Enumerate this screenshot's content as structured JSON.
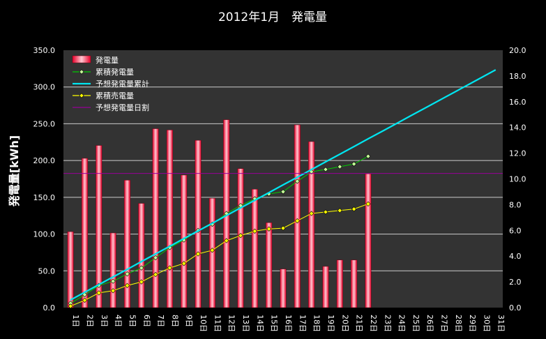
{
  "chart_data": {
    "type": "bar",
    "title": "2012年1月　発電量",
    "ylabel": "発電量[kWh]",
    "xlabel": "",
    "categories": [
      "1日",
      "2日",
      "3日",
      "4日",
      "5日",
      "6日",
      "7日",
      "8日",
      "9日",
      "10日",
      "11日",
      "12日",
      "13日",
      "14日",
      "15日",
      "16日",
      "17日",
      "18日",
      "19日",
      "20日",
      "21日",
      "22日",
      "23日",
      "24日",
      "25日",
      "26日",
      "27日",
      "28日",
      "29日",
      "30日",
      "31日"
    ],
    "ylim": [
      0,
      350
    ],
    "y_ticks": [
      "0.0",
      "50.0",
      "100.0",
      "150.0",
      "200.0",
      "250.0",
      "300.0",
      "350.0"
    ],
    "ylim_right": [
      0,
      20
    ],
    "y2_ticks": [
      "0.0",
      "2.0",
      "4.0",
      "6.0",
      "8.0",
      "10.0",
      "12.0",
      "14.0",
      "16.0",
      "18.0",
      "20.0"
    ],
    "grid": true,
    "legend_position": "top-left",
    "colors": {
      "background": "#000000",
      "plot_background": "#333333",
      "grid": "#cccccc",
      "bar": "#e8002a",
      "bar_light": "#ffc8d2",
      "cumulative": "#00cc00",
      "cumulative_marker": "#c8ff9b",
      "forecast_cumulative": "#00e5f0",
      "cumulative_sold": "#ffff00",
      "forecast_daily": "#990099"
    },
    "series": [
      {
        "name": "発電量",
        "type": "bar",
        "axis": "right",
        "values": [
          5.9,
          11.6,
          12.6,
          5.8,
          9.9,
          8.1,
          13.9,
          13.8,
          10.3,
          13.0,
          8.5,
          14.6,
          10.8,
          9.2,
          6.6,
          3.0,
          14.2,
          12.9,
          3.2,
          3.7,
          3.7,
          10.4,
          null,
          null,
          null,
          null,
          null,
          null,
          null,
          null,
          null
        ]
      },
      {
        "name": "累積発電量",
        "type": "line",
        "axis": "left",
        "values": [
          5.9,
          17.5,
          30.1,
          35.9,
          45.8,
          53.9,
          67.8,
          81.6,
          91.9,
          104.9,
          113.4,
          128.0,
          138.8,
          148.0,
          154.6,
          157.6,
          171.8,
          184.7,
          187.9,
          191.6,
          195.3,
          205.7,
          null,
          null,
          null,
          null,
          null,
          null,
          null,
          null,
          null
        ]
      },
      {
        "name": "予想発電量累計",
        "type": "line",
        "axis": "left",
        "values": [
          10.4,
          20.9,
          31.3,
          41.7,
          52.1,
          62.6,
          73.0,
          83.4,
          93.9,
          104.3,
          114.7,
          125.2,
          135.6,
          146.0,
          156.4,
          166.9,
          177.3,
          187.7,
          198.2,
          208.6,
          219.0,
          229.5,
          239.9,
          250.3,
          260.8,
          271.2,
          281.6,
          292.0,
          302.5,
          312.9,
          323.3
        ]
      },
      {
        "name": "累積売電量",
        "type": "line",
        "axis": "left",
        "values": [
          2.0,
          10.0,
          20.0,
          23.0,
          30.0,
          35.0,
          45.0,
          54.0,
          60.0,
          73.0,
          78.0,
          91.0,
          98.0,
          104.0,
          107.0,
          108.0,
          118.0,
          128.0,
          130.0,
          132.0,
          134.0,
          141.0,
          null,
          null,
          null,
          null,
          null,
          null,
          null,
          null,
          null
        ]
      },
      {
        "name": "予想発電量日割",
        "type": "line",
        "axis": "right",
        "values": [
          10.43,
          10.43,
          10.43,
          10.43,
          10.43,
          10.43,
          10.43,
          10.43,
          10.43,
          10.43,
          10.43,
          10.43,
          10.43,
          10.43,
          10.43,
          10.43,
          10.43,
          10.43,
          10.43,
          10.43,
          10.43,
          10.43,
          10.43,
          10.43,
          10.43,
          10.43,
          10.43,
          10.43,
          10.43,
          10.43,
          10.43
        ]
      }
    ]
  }
}
